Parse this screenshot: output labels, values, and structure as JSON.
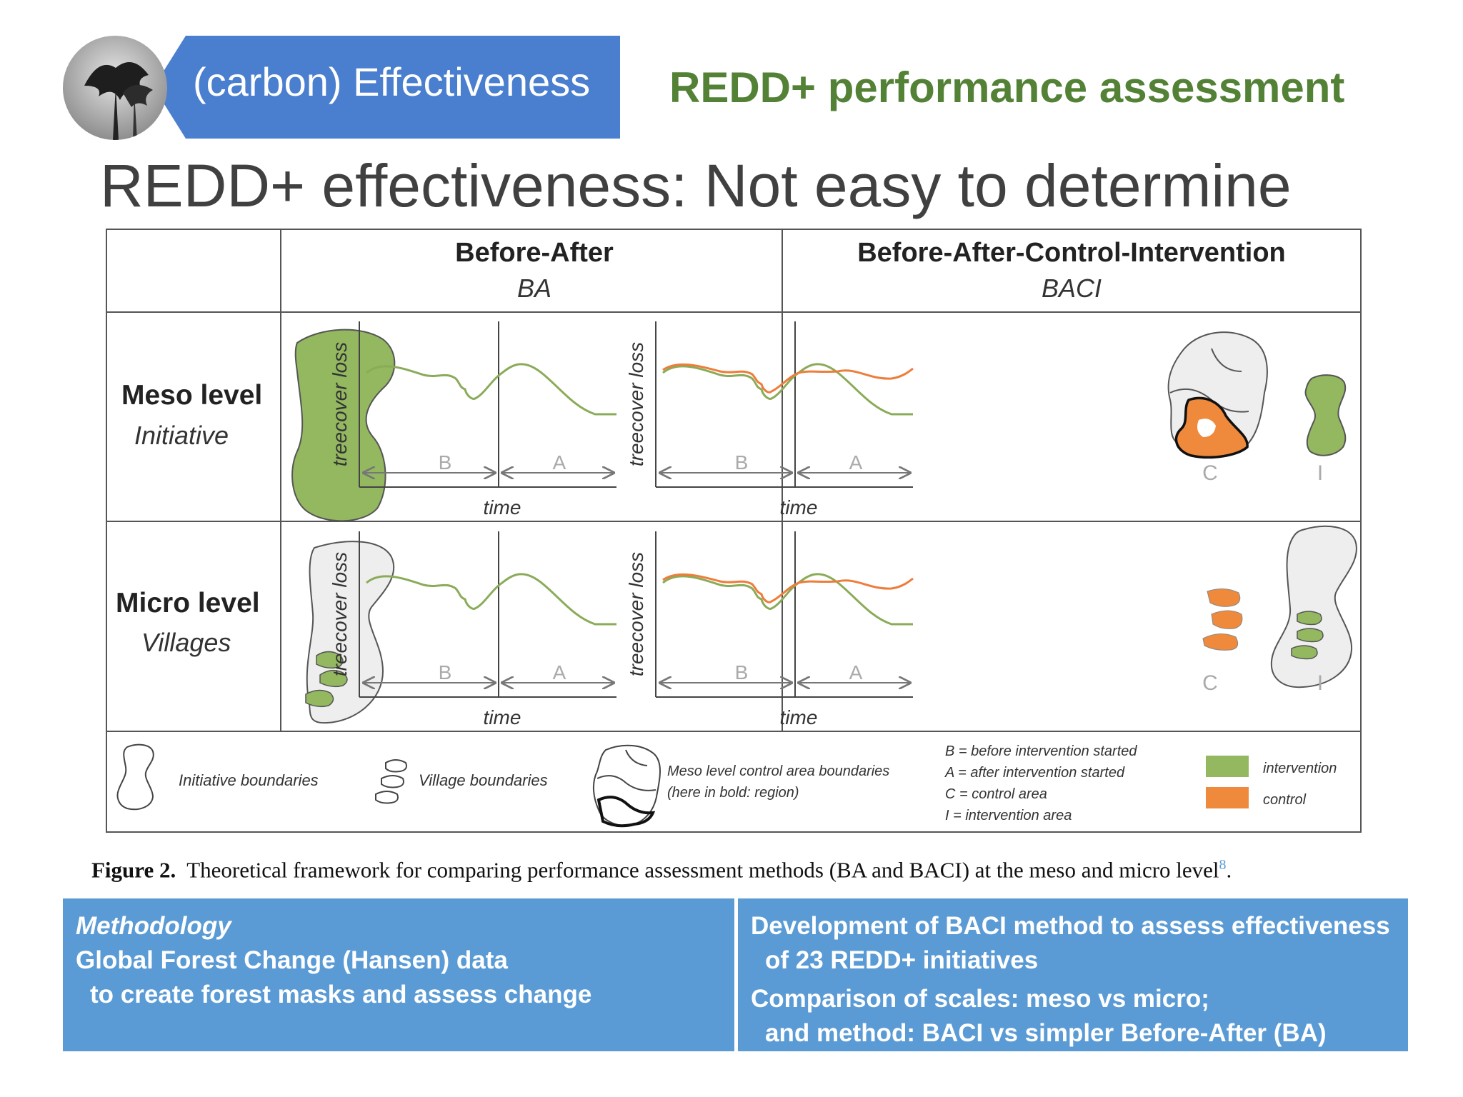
{
  "header": {
    "section_label": "(carbon) Effectiveness",
    "kicker": "REDD+ performance assessment",
    "title": "REDD+ effectiveness: Not easy to determine"
  },
  "figure": {
    "columns": [
      {
        "title": "Before-After",
        "abbr": "BA"
      },
      {
        "title": "Before-After-Control-Intervention",
        "abbr": "BACI"
      }
    ],
    "rows": [
      {
        "level": "Meso level",
        "unit": "Initiative"
      },
      {
        "level": "Micro level",
        "unit": "Villages"
      }
    ],
    "ylabel": "treecover loss",
    "xlabel": "time",
    "period_before": "B",
    "period_after": "A",
    "map_control": "C",
    "map_intervention": "I",
    "legend": {
      "initiative_boundaries": "Initiative boundaries",
      "village_boundaries": "Village boundaries",
      "meso_line1": "Meso level control area boundaries",
      "meso_line2": "(here in bold: region)",
      "def_b": "B = before intervention started",
      "def_a": "A = after intervention started",
      "def_c": "C = control area",
      "def_i": "I = intervention area",
      "intervention": "intervention",
      "control": "control"
    },
    "colors": {
      "intervention": "#93b860",
      "control": "#ef8a3c",
      "line_intervention": "#8aab58",
      "line_control": "#ee7c3a"
    }
  },
  "caption": {
    "label": "Figure 2.",
    "text": "Theoretical framework for comparing performance assessment methods (BA and BACI) at the meso and micro level",
    "ref": "8",
    "end": "."
  },
  "methodology": {
    "heading": "Methodology",
    "line1": "Global Forest Change (Hansen) data",
    "line2": "to create forest masks and assess change"
  },
  "development": {
    "line1": "Development of BACI method to assess effectiveness",
    "line2": "of 23 REDD+ initiatives",
    "line3": "Comparison of scales: meso vs micro;",
    "line4": "and method: BACI vs simpler Before-After (BA)"
  }
}
